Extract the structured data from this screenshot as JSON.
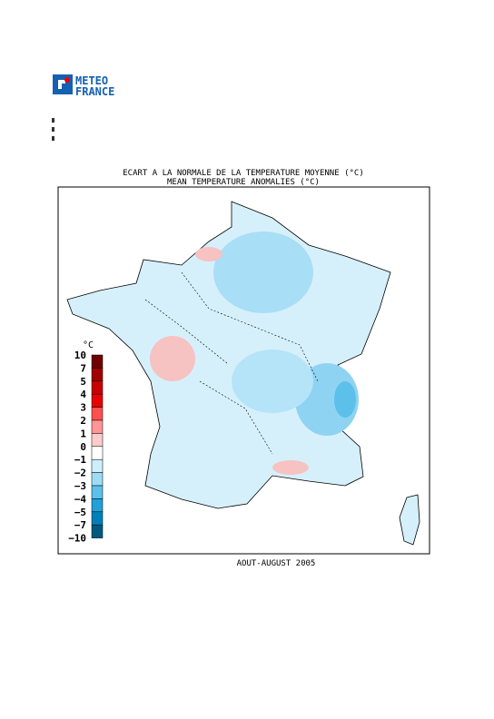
{
  "logo": {
    "line1": "METEO",
    "line2": "FRANCE"
  },
  "title": {
    "line1": "ECART A LA NORMALE DE LA TEMPERATURE MOYENNE (°C)",
    "line2": "MEAN TEMPERATURE ANOMALIES (°C)"
  },
  "period": "AOUT-AUGUST 2005",
  "legend": {
    "unit": "°C",
    "levels": [
      10,
      7,
      5,
      4,
      3,
      2,
      1,
      0,
      {
        "value": -1,
        "label": "−1"
      },
      {
        "value": -2,
        "label": "−2"
      },
      {
        "value": -3,
        "label": "−3"
      },
      {
        "value": -4,
        "label": "−4"
      },
      {
        "value": -5,
        "label": "−5"
      },
      {
        "value": -7,
        "label": "−7"
      },
      {
        "value": -10,
        "label": "−10"
      }
    ],
    "colors": [
      "#6e0000",
      "#a00000",
      "#c80000",
      "#e60000",
      "#ff5050",
      "#ff9696",
      "#ffcccc",
      "#ffffff",
      "#cdeefc",
      "#9ddcf5",
      "#5cc0ea",
      "#22a0d8",
      "#0080b8",
      "#005a80"
    ]
  }
}
